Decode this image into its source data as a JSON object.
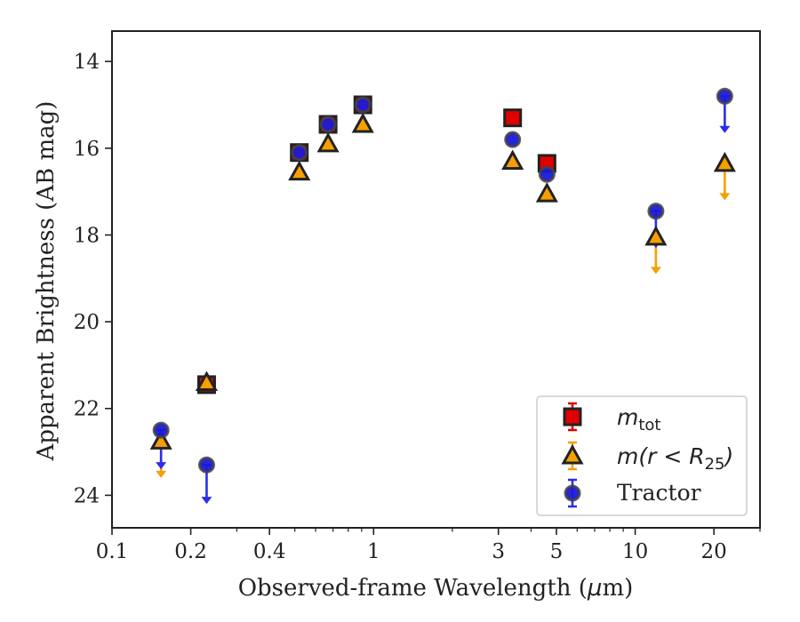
{
  "chart_data": {
    "type": "scatter",
    "xlabel_parts": [
      "Observed-frame Wavelength (",
      "μ",
      "m)"
    ],
    "ylabel": "Apparent Brightness (AB mag)",
    "xscale": "log",
    "xlim": [
      0.1,
      30
    ],
    "ylim": [
      24.75,
      13.3
    ],
    "y_inverted": true,
    "x_ticks": [
      {
        "value": 0.1,
        "label": "0.1"
      },
      {
        "value": 0.2,
        "label": "0.2"
      },
      {
        "value": 0.4,
        "label": "0.4"
      },
      {
        "value": 1,
        "label": "1"
      },
      {
        "value": 3,
        "label": "3"
      },
      {
        "value": 5,
        "label": "5"
      },
      {
        "value": 10,
        "label": "10"
      },
      {
        "value": 20,
        "label": "20"
      }
    ],
    "y_ticks": [
      {
        "value": 14,
        "label": "14"
      },
      {
        "value": 16,
        "label": "16"
      },
      {
        "value": 18,
        "label": "18"
      },
      {
        "value": 20,
        "label": "20"
      },
      {
        "value": 22,
        "label": "22"
      },
      {
        "value": 24,
        "label": "24"
      }
    ],
    "grid": false,
    "legend_position": "lower right",
    "series": [
      {
        "name_main": "m",
        "name_sub": "tot",
        "marker": "square",
        "color": "#e00000",
        "edge_color": "#222222",
        "points": [
          {
            "x": 0.23,
            "y": 21.45
          },
          {
            "x": 0.52,
            "y": 16.1
          },
          {
            "x": 0.67,
            "y": 15.45
          },
          {
            "x": 0.91,
            "y": 15.0
          },
          {
            "x": 3.4,
            "y": 15.3
          },
          {
            "x": 4.6,
            "y": 16.35
          }
        ],
        "upper_limits": []
      },
      {
        "name_main": "m(r < R",
        "name_sub": "25",
        "name_end": ")",
        "marker": "triangle",
        "color": "#f5a000",
        "edge_color": "#222222",
        "points": [
          {
            "x": 0.154,
            "y": 22.75
          },
          {
            "x": 0.23,
            "y": 21.4
          },
          {
            "x": 0.52,
            "y": 16.55
          },
          {
            "x": 0.67,
            "y": 15.9
          },
          {
            "x": 0.91,
            "y": 15.45
          },
          {
            "x": 3.4,
            "y": 16.3
          },
          {
            "x": 4.6,
            "y": 17.05
          },
          {
            "x": 12.0,
            "y": 18.05
          },
          {
            "x": 22.0,
            "y": 16.35
          }
        ],
        "upper_limits": [
          {
            "x": 0.154,
            "y_from": 22.75,
            "y_to": 23.6
          },
          {
            "x": 12.0,
            "y_from": 18.05,
            "y_to": 18.9
          },
          {
            "x": 22.0,
            "y_from": 16.35,
            "y_to": 17.2
          }
        ]
      },
      {
        "name_main": "Tractor",
        "marker": "circle",
        "color": "#1a1ad6",
        "edge_color": "#444444",
        "points": [
          {
            "x": 0.154,
            "y": 22.5
          },
          {
            "x": 0.23,
            "y": 23.3
          },
          {
            "x": 0.52,
            "y": 16.1
          },
          {
            "x": 0.67,
            "y": 15.45
          },
          {
            "x": 0.91,
            "y": 15.0
          },
          {
            "x": 3.4,
            "y": 15.8
          },
          {
            "x": 4.6,
            "y": 16.6
          },
          {
            "x": 12.0,
            "y": 17.45
          },
          {
            "x": 22.0,
            "y": 14.8
          }
        ],
        "upper_limits": [
          {
            "x": 0.154,
            "y_from": 22.5,
            "y_to": 23.4
          },
          {
            "x": 0.23,
            "y_from": 23.3,
            "y_to": 24.2
          },
          {
            "x": 12.0,
            "y_from": 17.45,
            "y_to": 18.3
          },
          {
            "x": 22.0,
            "y_from": 14.8,
            "y_to": 15.65
          }
        ]
      }
    ]
  }
}
